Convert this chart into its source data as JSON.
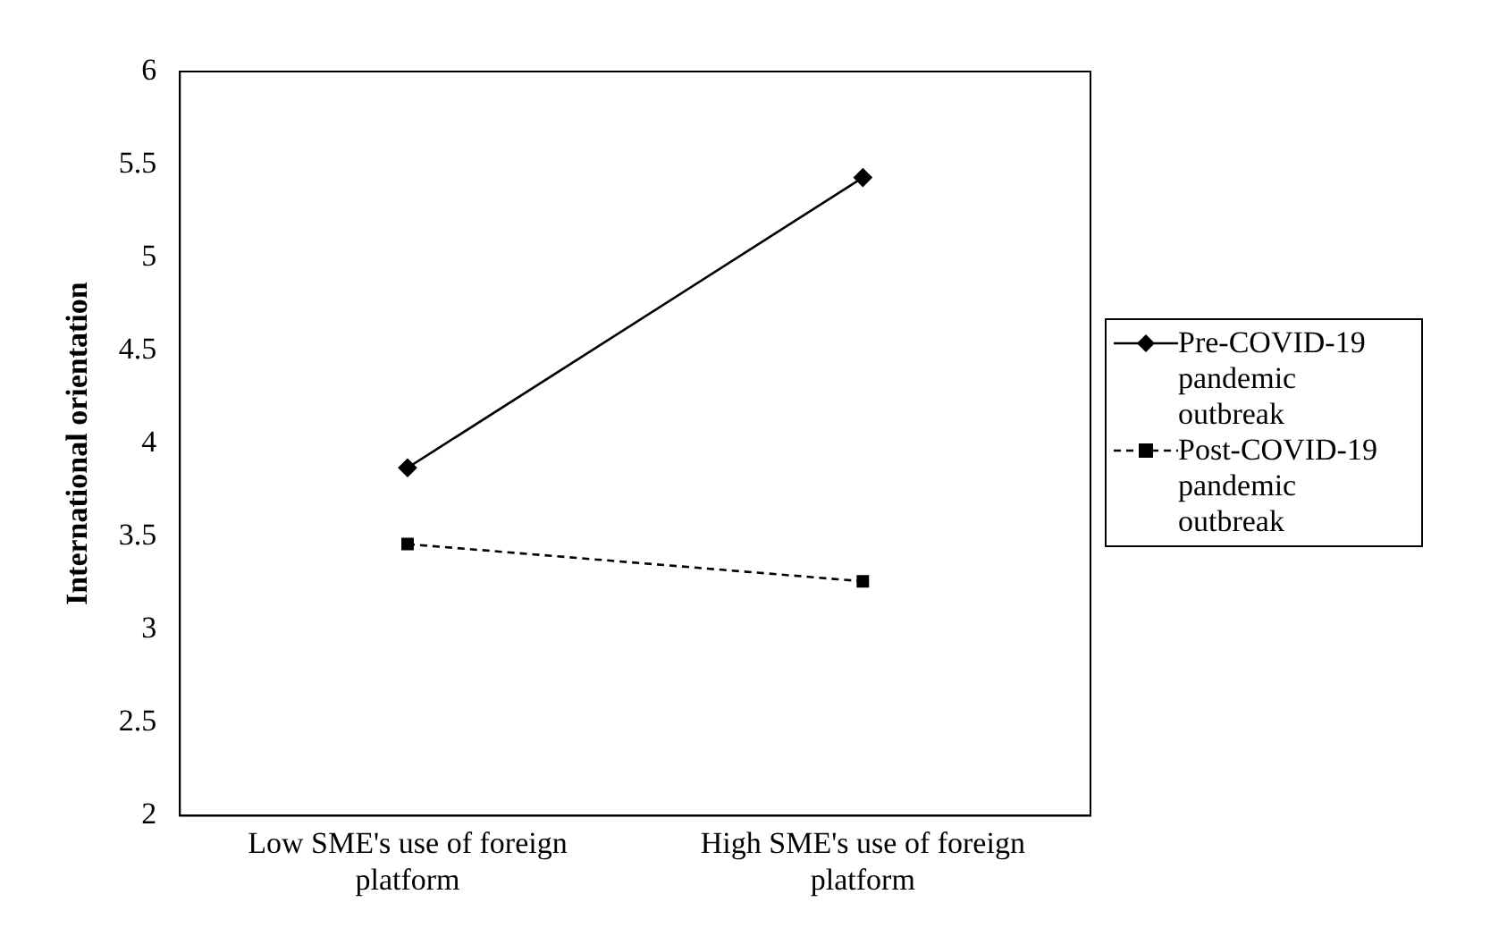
{
  "chart_data": {
    "type": "line",
    "ylabel": "International orientation",
    "categories": [
      "Low SME's use of foreign platform",
      "High SME's use of foreign platform"
    ],
    "series": [
      {
        "name": "Pre-COVID-19 pandemic outbreak",
        "color": "#000000",
        "values": [
          3.87,
          5.43
        ],
        "marker": "diamond",
        "line_style": "solid"
      },
      {
        "name": "Post-COVID-19 pandemic outbreak",
        "color": "#000000",
        "values": [
          3.46,
          3.26
        ],
        "marker": "square",
        "line_style": "dashed"
      }
    ],
    "ylim": [
      2,
      6
    ],
    "yticks": [
      2,
      2.5,
      3,
      3.5,
      4,
      4.5,
      5,
      5.5,
      6
    ],
    "grid": false,
    "legend": "right"
  }
}
